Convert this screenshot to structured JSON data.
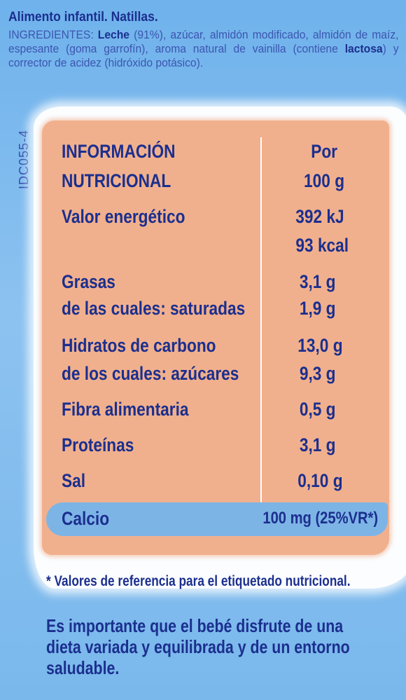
{
  "header": {
    "product_title": "Alimento infantil. Natillas.",
    "ingredients": {
      "label": "INGREDIENTES:",
      "leche": "Leche",
      "part1": " (91%), azúcar, almidón modificado, almidón de maíz, espesante (goma garrofín), aroma natural de vainilla (contiene ",
      "lactosa": "lactosa",
      "part2": ") y corrector de acidez (hidróxido potásico)."
    }
  },
  "side_code": "IDC055-4",
  "nutrition": {
    "header_label_line1": "INFORMACIÓN",
    "header_label_line2": "NUTRICIONAL",
    "header_value_line1": "Por",
    "header_value_line2": "100 g",
    "rows": [
      {
        "label": "Valor energético",
        "value": "392 kJ"
      },
      {
        "label": "",
        "value": "93 kcal"
      },
      {
        "label": "Grasas",
        "value": "3,1 g"
      },
      {
        "label": "de las cuales: saturadas",
        "value": "1,9 g"
      },
      {
        "label": "Hidratos de carbono",
        "value": "13,0 g"
      },
      {
        "label": "de los cuales: azúcares",
        "value": "9,3 g"
      },
      {
        "label": "Fibra alimentaria",
        "value": "0,5 g"
      },
      {
        "label": "Proteínas",
        "value": "3,1 g"
      },
      {
        "label": "Sal",
        "value": "0,10 g"
      },
      {
        "label": "Calcio",
        "value": "100 mg (25%VR*)"
      }
    ]
  },
  "footnote": "* Valores de referencia para el etiquetado nutricional.",
  "advice": "Es importante que el bebé disfrute de una dieta variada y equilibrada y de un entorno saludable."
}
